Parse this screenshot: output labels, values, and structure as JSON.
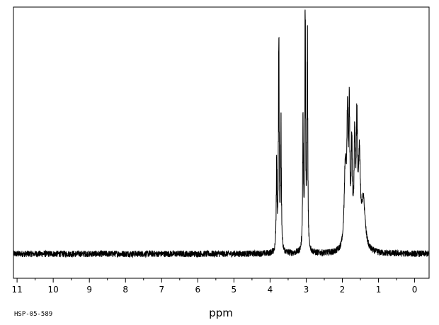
{
  "chart_data": {
    "type": "line",
    "title": "",
    "xlabel": "ppm",
    "ylabel": "",
    "xlim": [
      11.1,
      -0.4
    ],
    "ylim": [
      0,
      1
    ],
    "x_reversed": true,
    "grid": false,
    "x_ticks": [
      11,
      10,
      9,
      8,
      7,
      6,
      5,
      4,
      3,
      2,
      1,
      0
    ],
    "x_tick_labels": [
      "11",
      "10",
      "9",
      "8",
      "7",
      "6",
      "5",
      "4",
      "3",
      "2",
      "1",
      "0"
    ],
    "code_label": "HSP-05-589",
    "series": [
      {
        "line_color": "#000000",
        "peaks": [
          {
            "ppm": 3.82,
            "height": 0.34,
            "width": 0.012
          },
          {
            "ppm": 3.76,
            "height": 0.82,
            "width": 0.012
          },
          {
            "ppm": 3.7,
            "height": 0.48,
            "width": 0.012
          },
          {
            "ppm": 3.09,
            "height": 0.48,
            "width": 0.012
          },
          {
            "ppm": 3.03,
            "height": 0.92,
            "width": 0.012
          },
          {
            "ppm": 2.97,
            "height": 0.82,
            "width": 0.012
          },
          {
            "ppm": 1.92,
            "height": 0.3,
            "width": 0.035
          },
          {
            "ppm": 1.86,
            "height": 0.42,
            "width": 0.02
          },
          {
            "ppm": 1.81,
            "height": 0.48,
            "width": 0.018
          },
          {
            "ppm": 1.74,
            "height": 0.36,
            "width": 0.02
          },
          {
            "ppm": 1.66,
            "height": 0.38,
            "width": 0.02
          },
          {
            "ppm": 1.6,
            "height": 0.44,
            "width": 0.02
          },
          {
            "ppm": 1.53,
            "height": 0.32,
            "width": 0.03
          },
          {
            "ppm": 1.42,
            "height": 0.18,
            "width": 0.06
          }
        ],
        "baseline": 0.09,
        "noise_amplitude": 0.012
      }
    ]
  }
}
